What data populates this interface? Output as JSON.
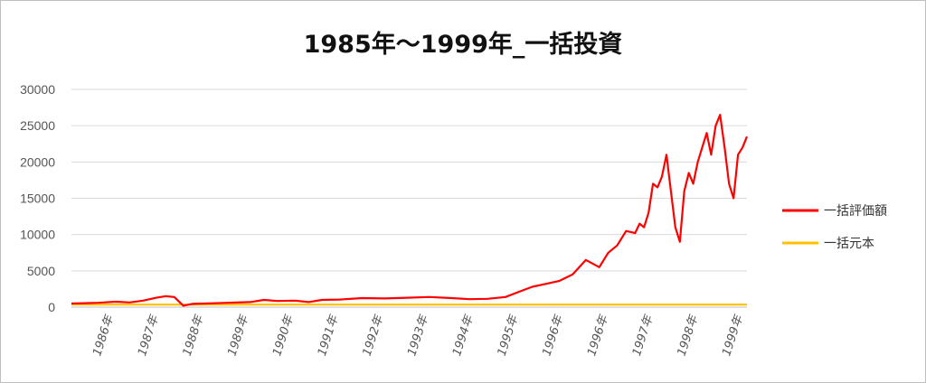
{
  "chart_data": {
    "type": "line",
    "title": "1985年～1999年_一括投資",
    "xlabel": "",
    "ylabel": "",
    "ylim": [
      0,
      30000
    ],
    "y_ticks": [
      "0",
      "5000",
      "10000",
      "15000",
      "20000",
      "25000",
      "30000"
    ],
    "x_ticks": [
      "1986年",
      "1987年",
      "1988年",
      "1989年",
      "1990年",
      "1991年",
      "1992年",
      "1993年",
      "1994年",
      "1995年",
      "1996年",
      "1996年",
      "1997年",
      "1998年",
      "1999年"
    ],
    "grid": true,
    "legend_position": "right",
    "colors": {
      "valuation": "#ff0000",
      "principal": "#ffc000"
    },
    "series": [
      {
        "name": "一括評価額",
        "x": [
          0.0,
          0.3,
          0.6,
          1.0,
          1.3,
          1.6,
          1.9,
          2.1,
          2.3,
          2.5,
          2.7,
          3.0,
          3.5,
          4.0,
          4.3,
          4.6,
          5.0,
          5.3,
          5.6,
          6.0,
          6.5,
          7.0,
          7.5,
          8.0,
          8.5,
          8.9,
          9.3,
          9.7,
          10.0,
          10.3,
          10.6,
          10.9,
          11.2,
          11.5,
          11.8,
          12.0,
          12.2,
          12.4,
          12.6,
          12.7,
          12.8,
          12.9,
          13.0,
          13.1,
          13.2,
          13.3,
          13.4,
          13.5,
          13.6,
          13.7,
          13.8,
          13.9,
          14.0,
          14.1,
          14.2,
          14.3,
          14.4,
          14.5,
          14.6,
          14.7,
          14.8,
          14.9,
          15.0,
          15.1
        ],
        "values": [
          500,
          550,
          600,
          750,
          650,
          900,
          1300,
          1500,
          1400,
          200,
          450,
          500,
          600,
          700,
          1000,
          850,
          900,
          700,
          1000,
          1050,
          1250,
          1200,
          1300,
          1400,
          1250,
          1100,
          1150,
          1400,
          2100,
          2800,
          3200,
          3600,
          4500,
          6500,
          5500,
          7500,
          8500,
          10500,
          10200,
          11500,
          11000,
          13000,
          17000,
          16500,
          18000,
          21000,
          16000,
          11000,
          9000,
          16000,
          18500,
          17000,
          20000,
          22000,
          24000,
          21000,
          25000,
          26500,
          22000,
          17000,
          15000,
          21000,
          22000,
          23500
        ]
      },
      {
        "name": "一括元本",
        "x": [
          0,
          15.1
        ],
        "values": [
          350,
          350
        ]
      }
    ]
  }
}
